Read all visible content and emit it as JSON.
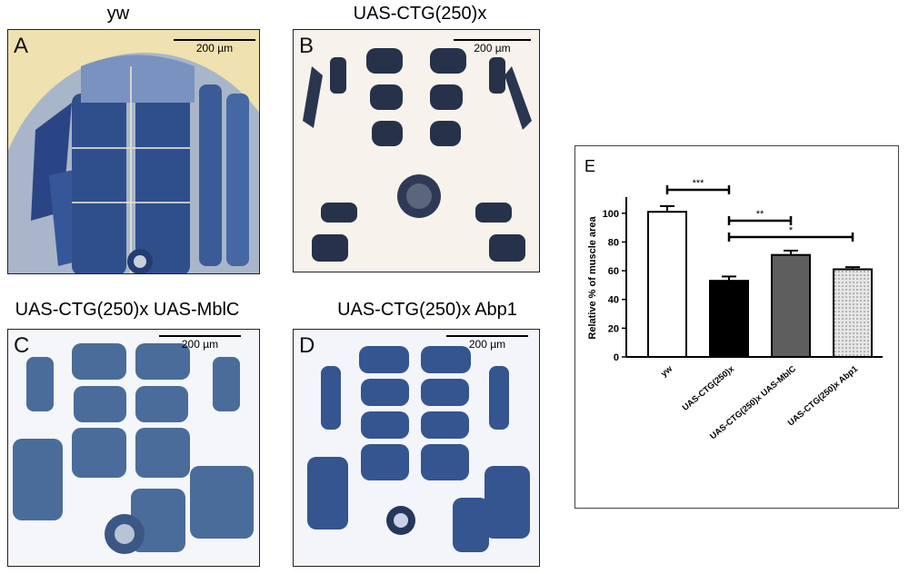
{
  "panels": [
    {
      "letter": "A",
      "title": "yw",
      "scale": "200 µm"
    },
    {
      "letter": "B",
      "title": "UAS-CTG(250)x",
      "scale": "200 µm"
    },
    {
      "letter": "C",
      "title": "UAS-CTG(250)x UAS-MblC",
      "scale": "200 µm"
    },
    {
      "letter": "D",
      "title": "UAS-CTG(250)x Abp1",
      "scale": "200 µm"
    }
  ],
  "colors": {
    "tissue_A": "#2f4f8c",
    "bg_A": "#efe2b0",
    "tissue_B": "#26324a",
    "bg_B": "#f7f3ec",
    "tissue_C": "#4a6c9a",
    "bg_C": "#f4f6fa",
    "tissue_D": "#34558f",
    "bg_D": "#f3f5fb"
  },
  "chart_data": {
    "type": "bar",
    "panel_letter": "E",
    "categories": [
      "yw",
      "UAS-CTG(250)x",
      "UAS-CTG(250)x UAS-MblC",
      "UAS-CTG(250)x Abp1"
    ],
    "values": [
      101,
      53,
      71,
      61
    ],
    "errors": [
      4,
      3,
      3,
      1.5
    ],
    "fills": [
      "white",
      "black",
      "#5e5e5e",
      "dotted"
    ],
    "ylabel": "Relative % of muscle area",
    "ylim": [
      0,
      110
    ],
    "yticks": [
      0,
      20,
      40,
      60,
      80,
      100
    ],
    "significance": [
      {
        "from": 0,
        "to": 1,
        "label": "***"
      },
      {
        "from": 1,
        "to": 2,
        "label": "**"
      },
      {
        "from": 1,
        "to": 3,
        "label": "*"
      }
    ]
  }
}
